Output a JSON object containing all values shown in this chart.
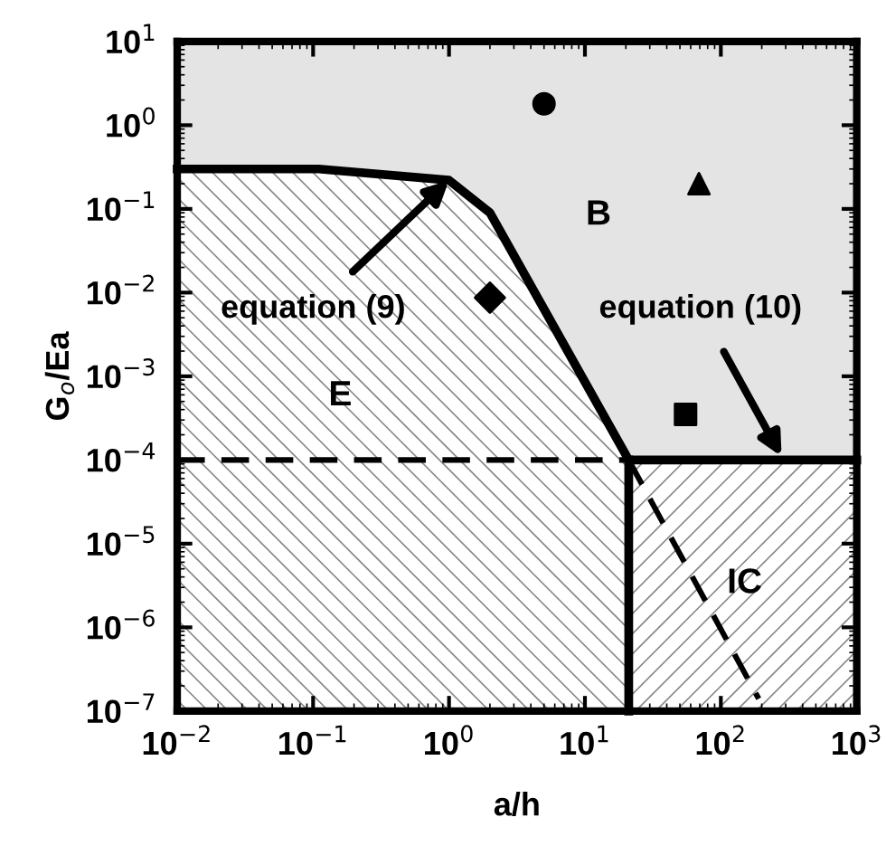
{
  "chart_data": {
    "type": "line",
    "xlabel": "a/h",
    "ylabel": "G$_{o}$/Ea",
    "log": "xy",
    "grid": false,
    "legend": false,
    "xlim": [
      0.01,
      1000
    ],
    "ylim": [
      1e-07,
      10
    ],
    "xticks": [
      {
        "value": 0.01,
        "label": "10$^{−2}$"
      },
      {
        "value": 0.1,
        "label": "10$^{−1}$"
      },
      {
        "value": 1,
        "label": "10$^{0}$"
      },
      {
        "value": 10,
        "label": "10$^{1}$"
      },
      {
        "value": 100,
        "label": "10$^{2}$"
      },
      {
        "value": 1000,
        "label": "10$^{3}$"
      }
    ],
    "yticks": [
      {
        "value": 1e-07,
        "label": "10$^{−7}$"
      },
      {
        "value": 1e-06,
        "label": "10$^{−6}$"
      },
      {
        "value": 1e-05,
        "label": "10$^{−5}$"
      },
      {
        "value": 0.0001,
        "label": "10$^{−4}$"
      },
      {
        "value": 0.001,
        "label": "10$^{−3}$"
      },
      {
        "value": 0.01,
        "label": "10$^{−2}$"
      },
      {
        "value": 0.1,
        "label": "10$^{−1}$"
      },
      {
        "value": 1,
        "label": "10$^{0}$"
      },
      {
        "value": 10,
        "label": "10$^{1}$"
      }
    ],
    "series": [
      {
        "color": "#000000",
        "line_style": "solid",
        "marker": "none",
        "x": [
          0.01,
          0.11,
          1,
          2,
          21,
          1000
        ],
        "values": [
          0.3,
          0.3,
          0.22,
          0.09,
          0.0001,
          0.0001
        ]
      },
      {
        "color": "#000000",
        "line_style": "solid",
        "marker": "none",
        "x": [
          21,
          21
        ],
        "values": [
          0.0001,
          1e-07
        ]
      },
      {
        "color": "#000000",
        "line_style": "dashed",
        "marker": "none",
        "x": [
          0.01,
          21
        ],
        "values": [
          0.0001,
          0.0001
        ]
      },
      {
        "color": "#000000",
        "line_style": "dashed",
        "marker": "none",
        "x": [
          21,
          190
        ],
        "values": [
          0.0001,
          1.4e-07
        ]
      },
      {
        "type": "scatter",
        "color": "#000000",
        "marker": "circle",
        "x": [
          5
        ],
        "values": [
          1.8
        ]
      },
      {
        "type": "scatter",
        "color": "#000000",
        "marker": "triangle",
        "x": [
          69
        ],
        "values": [
          0.2
        ]
      },
      {
        "type": "scatter",
        "color": "#000000",
        "marker": "diamond",
        "x": [
          2
        ],
        "values": [
          0.0087
        ]
      },
      {
        "type": "scatter",
        "color": "#000000",
        "marker": "square",
        "x": [
          55
        ],
        "values": [
          0.00035
        ]
      }
    ],
    "annotations": [
      {
        "text": "equation (9)",
        "x": 1,
        "y": 0.22
      },
      {
        "text": "equation (10)",
        "x": 280,
        "y": 0.00011
      },
      "B",
      "E",
      "IC"
    ]
  }
}
